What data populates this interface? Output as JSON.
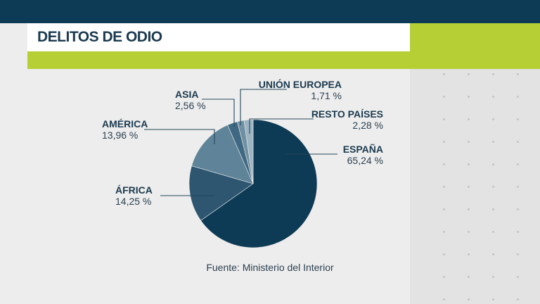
{
  "title": "DELITOS DE ODIO",
  "source": "Fuente: Ministerio del Interior",
  "chart_data": {
    "type": "pie",
    "slices": [
      {
        "name": "ESPAÑA",
        "value": 65.24,
        "label": "65,24 %",
        "color": "#0d3a54"
      },
      {
        "name": "ÁFRICA",
        "value": 14.25,
        "label": "14,25 %",
        "color": "#2e5670"
      },
      {
        "name": "AMÉRICA",
        "value": 13.96,
        "label": "13,96 %",
        "color": "#5f8398"
      },
      {
        "name": "ASIA",
        "value": 2.56,
        "label": "2,56 %",
        "color": "#3f6882"
      },
      {
        "name": "UNIÓN EUROPEA",
        "value": 1.71,
        "label": "1,71 %",
        "color": "#6f90a3"
      },
      {
        "name": "RESTO PAÍSES",
        "value": 2.28,
        "label": "2,28 %",
        "color": "#9bb4c2"
      }
    ]
  }
}
